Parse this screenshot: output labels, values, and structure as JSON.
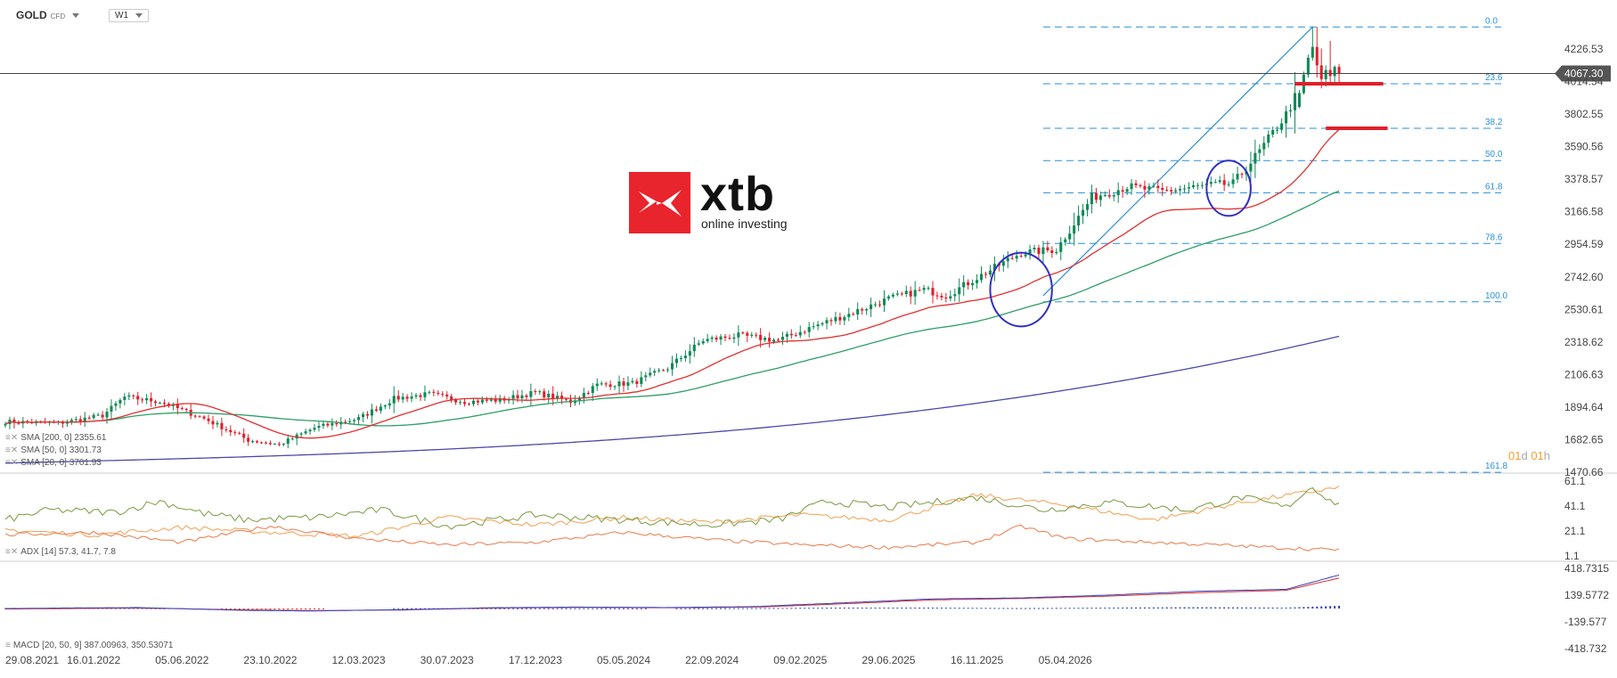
{
  "header": {
    "symbol": "GOLD",
    "symbol_type": "CFD",
    "timeframe": "W1"
  },
  "colors": {
    "up": "#0f8a56",
    "down": "#e0202b",
    "sma200": "#4a4aa8",
    "sma50": "#2e9e66",
    "sma20": "#e03030",
    "fib": "#2a8fd8",
    "price_line": "#444444",
    "adx": "#e87a4a",
    "plus_di": "#f0a050",
    "minus_di": "#7a9a40",
    "macd": "#3040c0",
    "signal": "#e03030",
    "circle": "#3030c0",
    "support": "#e0202b"
  },
  "logo": {
    "brand": "xtb",
    "tagline": "online investing"
  },
  "countdown": {
    "days": "01",
    "d": "d",
    "hours": "01",
    "h": "h"
  },
  "indicators": {
    "sma200": "SMA [200, 0]  2355.61",
    "sma50": "SMA [50, 0]  3301.73",
    "sma20": "SMA [20, 0]  3701.93",
    "adx": "ADX [14]  57.3,  41.7,  7.8",
    "macd": "MACD  [20, 50, 9]  387.00963,  350.53071"
  },
  "chart_data": {
    "type": "candlestick",
    "title": "GOLD CFD W1",
    "current_price": "4067.30",
    "price_ticks": [
      "4226.53",
      "4014.54",
      "3802.55",
      "3590.56",
      "3378.57",
      "3166.58",
      "2954.59",
      "2742.60",
      "2530.61",
      "2318.62",
      "2106.63",
      "1894.64",
      "1682.65",
      "1470.66"
    ],
    "price_range": [
      1470.66,
      4226.53
    ],
    "x_labels": [
      "29.08.2021",
      "16.01.2022",
      "05.06.2022",
      "23.10.2022",
      "12.03.2023",
      "30.07.2023",
      "17.12.2023",
      "05.05.2024",
      "22.09.2024",
      "09.02.2025",
      "29.06.2025",
      "16.11.2025",
      "05.04.2026"
    ],
    "close_anchors": [
      [
        0,
        1800
      ],
      [
        12,
        1790
      ],
      [
        22,
        1840
      ],
      [
        27,
        1960
      ],
      [
        35,
        1930
      ],
      [
        45,
        1820
      ],
      [
        55,
        1680
      ],
      [
        62,
        1650
      ],
      [
        70,
        1760
      ],
      [
        80,
        1820
      ],
      [
        88,
        1950
      ],
      [
        96,
        1980
      ],
      [
        104,
        1930
      ],
      [
        112,
        1940
      ],
      [
        120,
        1990
      ],
      [
        128,
        1930
      ],
      [
        134,
        2040
      ],
      [
        142,
        2050
      ],
      [
        150,
        2150
      ],
      [
        158,
        2330
      ],
      [
        166,
        2360
      ],
      [
        175,
        2330
      ],
      [
        183,
        2420
      ],
      [
        191,
        2500
      ],
      [
        200,
        2600
      ],
      [
        208,
        2660
      ],
      [
        213,
        2620
      ],
      [
        222,
        2770
      ],
      [
        230,
        2900
      ],
      [
        238,
        2920
      ],
      [
        246,
        3260
      ],
      [
        254,
        3330
      ],
      [
        262,
        3300
      ],
      [
        270,
        3330
      ],
      [
        278,
        3350
      ],
      [
        284,
        3560
      ],
      [
        290,
        3800
      ],
      [
        294,
        4020
      ],
      [
        298,
        4230
      ],
      [
        301,
        4050
      ],
      [
        305,
        4067.3
      ]
    ],
    "ohlc_recent": [
      {
        "week": 293,
        "open": 3850,
        "high": 3960,
        "low": 3840,
        "close": 3940
      },
      {
        "week": 294,
        "open": 3940,
        "high": 4080,
        "low": 3930,
        "close": 4060
      },
      {
        "week": 295,
        "open": 4060,
        "high": 4190,
        "low": 4040,
        "close": 4170
      },
      {
        "week": 296,
        "open": 4170,
        "high": 4370,
        "low": 4150,
        "close": 4240
      },
      {
        "week": 297,
        "open": 4240,
        "high": 4370,
        "low": 4040,
        "close": 4120
      },
      {
        "week": 298,
        "open": 4120,
        "high": 4230,
        "low": 3970,
        "close": 4030
      },
      {
        "week": 299,
        "open": 4030,
        "high": 4120,
        "low": 3980,
        "close": 4090
      },
      {
        "week": 300,
        "open": 4090,
        "high": 4280,
        "low": 4000,
        "close": 4050
      },
      {
        "week": 301,
        "open": 4050,
        "high": 4120,
        "low": 4010,
        "close": 4110
      },
      {
        "week": 302,
        "open": 4110,
        "high": 4130,
        "low": 4010,
        "close": 4067.3
      }
    ],
    "weeks_total": 303,
    "x_label_spacing_weeks": 20,
    "sma_end_values": {
      "sma200": 2355.61,
      "sma50": 3301.73,
      "sma20": 3701.93
    },
    "fibonacci": {
      "levels": [
        {
          "label": "0.0",
          "price": 4370
        },
        {
          "label": "23.6",
          "price": 4000
        },
        {
          "label": "38.2",
          "price": 3710
        },
        {
          "label": "50.0",
          "price": 3500
        },
        {
          "label": "61.8",
          "price": 3290
        },
        {
          "label": "78.6",
          "price": 2960
        },
        {
          "label": "100.0",
          "price": 2580
        },
        {
          "label": "161.8",
          "price": 1470
        }
      ],
      "start_week": 235
    },
    "trendline": {
      "from": [
        235,
        2620
      ],
      "to": [
        296,
        4370
      ]
    },
    "support_lines": [
      {
        "price": 4000,
        "from_week": 292,
        "to_week": 312
      },
      {
        "price": 3710,
        "from_week": 299,
        "to_week": 313
      }
    ],
    "circles": [
      {
        "week": 230,
        "price": 2660,
        "rx_weeks": 7,
        "price_half_range": 240
      },
      {
        "week": 277,
        "price": 3320,
        "rx_weeks": 5,
        "price_half_range": 180
      }
    ],
    "adx_panel": {
      "ticks": [
        "61.1",
        "41.1",
        "21.1",
        "1.1"
      ],
      "range": [
        1.1,
        61.1
      ],
      "adx_anchors": [
        [
          0,
          18
        ],
        [
          20,
          20
        ],
        [
          40,
          12
        ],
        [
          60,
          25
        ],
        [
          80,
          15
        ],
        [
          100,
          10
        ],
        [
          120,
          12
        ],
        [
          140,
          20
        ],
        [
          160,
          14
        ],
        [
          180,
          10
        ],
        [
          200,
          8
        ],
        [
          220,
          12
        ],
        [
          230,
          25
        ],
        [
          240,
          15
        ],
        [
          260,
          12
        ],
        [
          280,
          9
        ],
        [
          300,
          6
        ],
        [
          305,
          7.8
        ]
      ],
      "plus_di_anchors": [
        [
          0,
          22
        ],
        [
          20,
          18
        ],
        [
          40,
          24
        ],
        [
          60,
          20
        ],
        [
          80,
          17
        ],
        [
          100,
          32
        ],
        [
          120,
          26
        ],
        [
          140,
          32
        ],
        [
          160,
          28
        ],
        [
          180,
          34
        ],
        [
          200,
          30
        ],
        [
          220,
          50
        ],
        [
          240,
          42
        ],
        [
          260,
          30
        ],
        [
          280,
          44
        ],
        [
          300,
          55
        ],
        [
          305,
          57.3
        ]
      ],
      "minus_di_anchors": [
        [
          0,
          30
        ],
        [
          10,
          38
        ],
        [
          25,
          36
        ],
        [
          35,
          45
        ],
        [
          45,
          35
        ],
        [
          55,
          30
        ],
        [
          70,
          32
        ],
        [
          85,
          38
        ],
        [
          100,
          25
        ],
        [
          120,
          34
        ],
        [
          140,
          30
        ],
        [
          160,
          26
        ],
        [
          175,
          30
        ],
        [
          186,
          45
        ],
        [
          200,
          40
        ],
        [
          220,
          48
        ],
        [
          235,
          38
        ],
        [
          250,
          44
        ],
        [
          268,
          38
        ],
        [
          280,
          48
        ],
        [
          290,
          40
        ],
        [
          296,
          57
        ],
        [
          300,
          45
        ],
        [
          305,
          41.7
        ]
      ]
    },
    "macd_panel": {
      "ticks": [
        "418.7315",
        "139.5772",
        "-139.577",
        "-418.732"
      ],
      "range": [
        -418.732,
        418.7315
      ],
      "macd_anchors": [
        [
          0,
          0
        ],
        [
          30,
          10
        ],
        [
          55,
          -20
        ],
        [
          70,
          -25
        ],
        [
          90,
          -12
        ],
        [
          110,
          8
        ],
        [
          130,
          15
        ],
        [
          150,
          10
        ],
        [
          170,
          20
        ],
        [
          190,
          60
        ],
        [
          210,
          100
        ],
        [
          230,
          110
        ],
        [
          250,
          140
        ],
        [
          270,
          180
        ],
        [
          290,
          200
        ],
        [
          305,
          387
        ]
      ],
      "signal_anchors": [
        [
          0,
          -5
        ],
        [
          30,
          5
        ],
        [
          55,
          -15
        ],
        [
          70,
          -22
        ],
        [
          90,
          -15
        ],
        [
          110,
          5
        ],
        [
          130,
          12
        ],
        [
          150,
          8
        ],
        [
          170,
          15
        ],
        [
          190,
          50
        ],
        [
          210,
          90
        ],
        [
          230,
          105
        ],
        [
          250,
          130
        ],
        [
          270,
          165
        ],
        [
          290,
          190
        ],
        [
          305,
          350
        ]
      ]
    }
  }
}
